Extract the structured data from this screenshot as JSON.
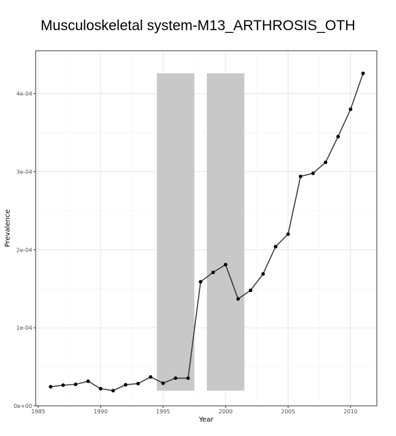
{
  "chart_data": {
    "type": "line",
    "title": "Musculoskeletal system-M13_ARTHROSIS_OTH",
    "xlabel": "Year",
    "ylabel": "Prevalence",
    "xlim": [
      1984.8,
      2012.1
    ],
    "ylim": [
      0,
      0.000455
    ],
    "x_ticks": [
      1985,
      1990,
      1995,
      2000,
      2005,
      2010
    ],
    "x_tick_labels": [
      "1985",
      "1990",
      "1995",
      "2000",
      "2005",
      "2010"
    ],
    "y_ticks": [
      0,
      0.0001,
      0.0002,
      0.0003,
      0.0004
    ],
    "y_tick_labels": [
      "0e+00",
      "1e-04",
      "2e-04",
      "3e-04",
      "4e-04"
    ],
    "grid": true,
    "legend": "none",
    "series": [
      {
        "x": [
          1986,
          1987,
          1988,
          1989,
          1990,
          1991,
          1992,
          1993,
          1994,
          1995,
          1996,
          1997,
          1998,
          1999,
          2000,
          2001,
          2002,
          2003,
          2004,
          2005,
          2006,
          2007,
          2008,
          2009,
          2010,
          2011
        ],
        "values": [
          2.45e-05,
          2.65e-05,
          2.75e-05,
          3.15e-05,
          2.2e-05,
          1.95e-05,
          2.7e-05,
          2.85e-05,
          3.7e-05,
          2.9e-05,
          3.55e-05,
          3.55e-05,
          0.000159,
          0.000171,
          0.000181,
          0.000137,
          0.000148,
          0.000169,
          0.000204,
          0.00022,
          0.000294,
          0.000298,
          0.000312,
          0.000345,
          0.00038,
          0.000426
        ]
      }
    ],
    "shaded_regions": [
      {
        "x": [
          1994.5,
          1997.5
        ],
        "y": [
          1.95e-05,
          0.000426
        ]
      },
      {
        "x": [
          1998.5,
          2001.5
        ],
        "y": [
          1.95e-05,
          0.000426
        ]
      }
    ],
    "colors": {
      "line": "#333333",
      "point": "#000000",
      "shade": "#c8c8c8",
      "grid_major": "#e6e6e6",
      "grid_minor": "#f2f2f2",
      "panel_border": "#333333"
    }
  }
}
